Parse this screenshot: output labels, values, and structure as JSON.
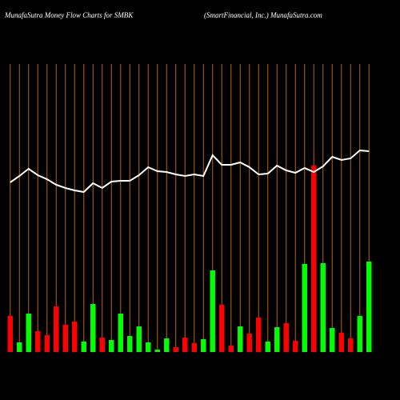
{
  "chart_data": {
    "type": "bar",
    "title": "MunafaSutra  Money Flow  Charts for SMBK",
    "subtitle": "(SmartFinancial,  Inc.) MunafaSutra.com",
    "categories": [
      null,
      null,
      null,
      null,
      null,
      null,
      null,
      null,
      null,
      null,
      null,
      null,
      null,
      null,
      null,
      null,
      null,
      null,
      null,
      null,
      null,
      null,
      null,
      null,
      null,
      null,
      null,
      null,
      null,
      null,
      null,
      null,
      null,
      null,
      null,
      null,
      null,
      null,
      null,
      null
    ],
    "ylim": [
      0,
      440
    ],
    "series": [
      {
        "type": "bar",
        "values": [
          45,
          12,
          48,
          26,
          21,
          57,
          34,
          38,
          13,
          60,
          18,
          15,
          48,
          20,
          32,
          12,
          3,
          17,
          6,
          18,
          11,
          16,
          102,
          59,
          8,
          32,
          23,
          43,
          13,
          31,
          36,
          14,
          110,
          233,
          111,
          30,
          24,
          17,
          45,
          113
        ],
        "colors": [
          "#ff0000",
          "#00ff00",
          "#00ff00",
          "#ff0000",
          "#ff0000",
          "#ff0000",
          "#ff0000",
          "#ff0000",
          "#00ff00",
          "#00ff00",
          "#ff0000",
          "#00ff00",
          "#00ff00",
          "#00ff00",
          "#00ff00",
          "#00ff00",
          "#00ff00",
          "#00ff00",
          "#ff0000",
          "#ff0000",
          "#ff0000",
          "#00ff00",
          "#00ff00",
          "#ff0000",
          "#ff0000",
          "#00ff00",
          "#ff0000",
          "#ff0000",
          "#00ff00",
          "#00ff00",
          "#ff0000",
          "#ff0000",
          "#00ff00",
          "#ff0000",
          "#00ff00",
          "#00ff00",
          "#ff0000",
          "#ff0000",
          "#00ff00",
          "#00ff00"
        ]
      },
      {
        "type": "line",
        "color": "#ffffff",
        "values": [
          212,
          220,
          229,
          221,
          216,
          209,
          205,
          202,
          200,
          211,
          205,
          213,
          214,
          214,
          221,
          231,
          226,
          225,
          222,
          220,
          222,
          220,
          246,
          234,
          234,
          237,
          231,
          222,
          223,
          233,
          227,
          224,
          230,
          225,
          232,
          244,
          240,
          242,
          252,
          251
        ]
      }
    ]
  }
}
